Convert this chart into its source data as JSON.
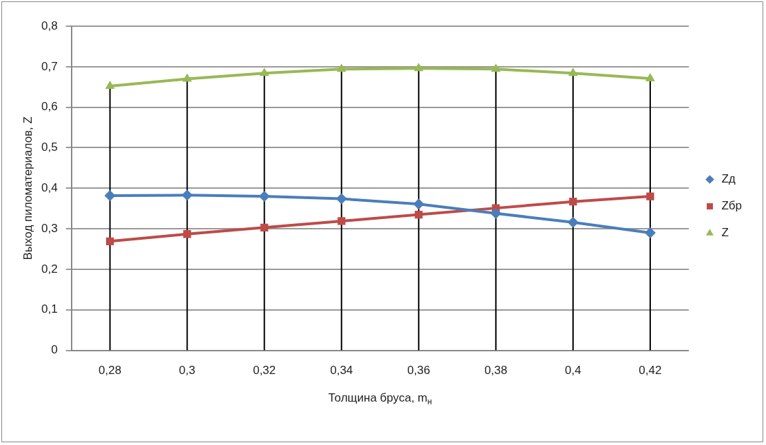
{
  "chart_data": {
    "type": "line",
    "xlabel": "Толщина бруса, m$_{н}$",
    "ylabel": "Выход пиломатериалов, Z",
    "categories": [
      "0,28",
      "0,3",
      "0,32",
      "0,34",
      "0,36",
      "0,38",
      "0,4",
      "0,42"
    ],
    "series": [
      {
        "name": "Zд",
        "color": "#4a7ebb",
        "marker": "diamond",
        "values": [
          0.382,
          0.383,
          0.38,
          0.374,
          0.361,
          0.338,
          0.316,
          0.29
        ]
      },
      {
        "name": "Zбр",
        "color": "#be4b48",
        "marker": "square",
        "values": [
          0.269,
          0.287,
          0.303,
          0.319,
          0.335,
          0.351,
          0.367,
          0.38
        ]
      },
      {
        "name": "Z",
        "color": "#98b954",
        "marker": "triangle",
        "values": [
          0.652,
          0.67,
          0.684,
          0.694,
          0.696,
          0.694,
          0.684,
          0.671
        ]
      }
    ],
    "ylim": [
      0,
      0.8
    ],
    "yticks": [
      {
        "value": 0,
        "label": "0"
      },
      {
        "value": 0.1,
        "label": "0,1"
      },
      {
        "value": 0.2,
        "label": "0,2"
      },
      {
        "value": 0.3,
        "label": "0,3"
      },
      {
        "value": 0.4,
        "label": "0,4"
      },
      {
        "value": 0.5,
        "label": "0,5"
      },
      {
        "value": 0.6,
        "label": "0,6"
      },
      {
        "value": 0.7,
        "label": "0,7"
      },
      {
        "value": 0.8,
        "label": "0,8"
      }
    ],
    "grid": true,
    "legend": "right",
    "line_style": "solid"
  }
}
